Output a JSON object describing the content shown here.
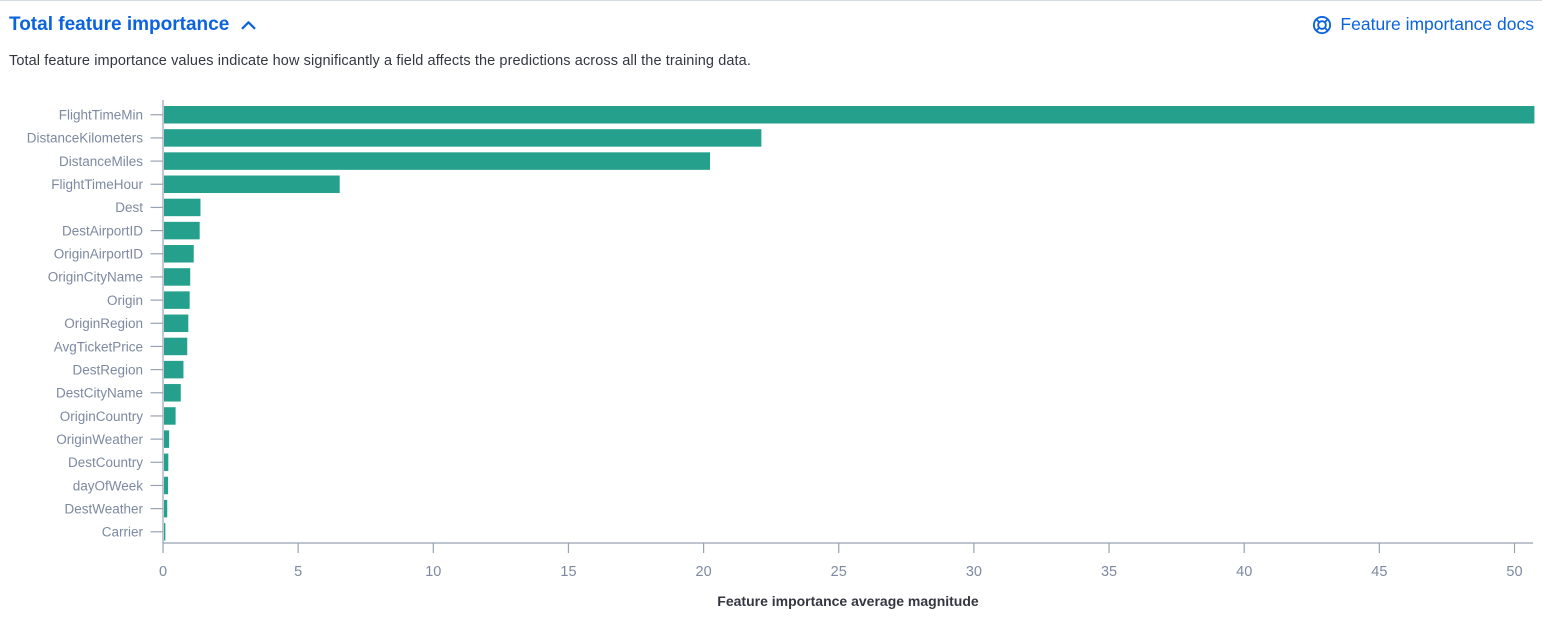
{
  "accordion": {
    "title": "Total feature importance",
    "state": "expanded",
    "chevron_icon": "chevron-up"
  },
  "docs_link": {
    "label": "Feature importance docs",
    "icon": "lifebuoy-help"
  },
  "description": "Total feature importance values indicate how significantly a field affects the predictions across all the training data.",
  "colors": {
    "accent_blue": "#0b64dd",
    "bar_teal": "#25a08c",
    "axis_line": "#98a2b3",
    "tick_label": "#7d89a0",
    "text_dark": "#343741",
    "top_border": "#d3dae6"
  },
  "chart_data": {
    "type": "bar",
    "orientation": "horizontal",
    "title": "",
    "xlabel": "Feature importance average magnitude",
    "ylabel": "",
    "grid": false,
    "legend": "none",
    "xlim": [
      0,
      50.7
    ],
    "x_ticks": [
      0,
      5,
      10,
      15,
      20,
      25,
      30,
      35,
      40,
      45,
      50
    ],
    "bar_color": "#25a08c",
    "categories": [
      "FlightTimeMin",
      "DistanceKilometers",
      "DistanceMiles",
      "FlightTimeHour",
      "Dest",
      "DestAirportID",
      "OriginAirportID",
      "OriginCityName",
      "Origin",
      "OriginRegion",
      "AvgTicketPrice",
      "DestRegion",
      "DestCityName",
      "OriginCountry",
      "OriginWeather",
      "DestCountry",
      "dayOfWeek",
      "DestWeather",
      "Carrier"
    ],
    "values": [
      50.7,
      22.1,
      20.2,
      6.5,
      1.35,
      1.32,
      1.1,
      0.97,
      0.95,
      0.9,
      0.86,
      0.72,
      0.62,
      0.43,
      0.19,
      0.16,
      0.15,
      0.12,
      0.05
    ]
  }
}
